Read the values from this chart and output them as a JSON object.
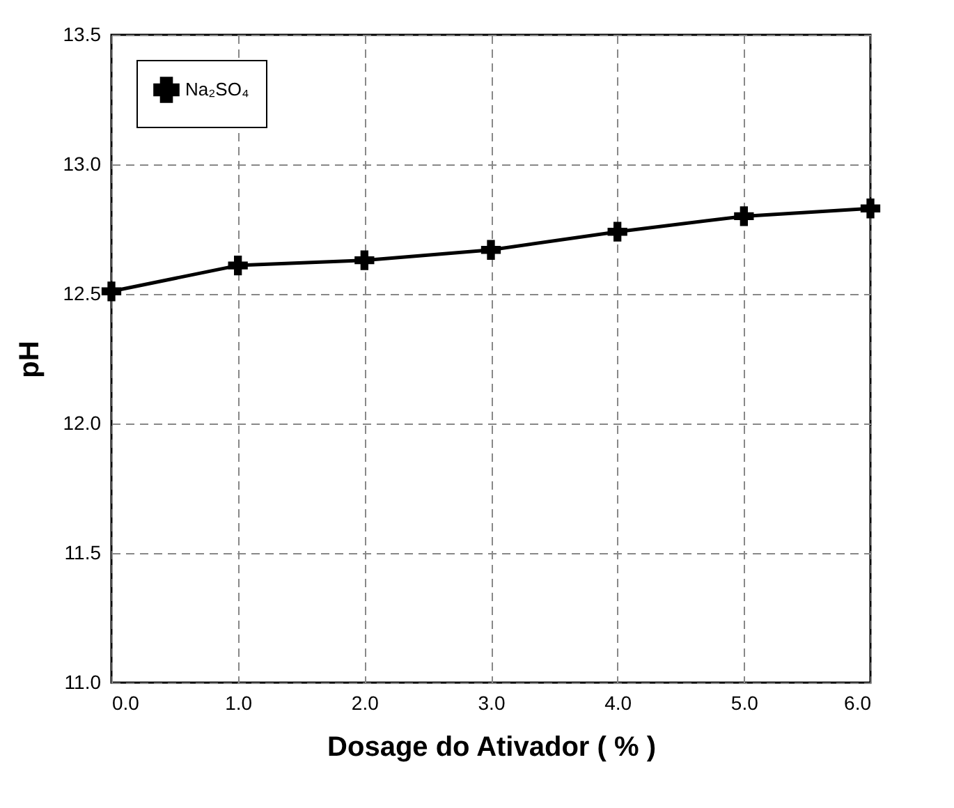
{
  "chart_data": {
    "type": "line",
    "xlabel": "Dosage do Ativador ( % )",
    "ylabel": "pH",
    "x": [
      0,
      1,
      2,
      3,
      4,
      5,
      6
    ],
    "series": [
      {
        "name": "Na₂SO₄",
        "color": "#000000",
        "values": [
          12.51,
          12.61,
          12.63,
          12.67,
          12.74,
          12.8,
          12.83
        ]
      }
    ],
    "xlim": [
      0,
      6
    ],
    "ylim": [
      11,
      13.5
    ],
    "xticks": [
      {
        "value": 0,
        "label": "0.0"
      },
      {
        "value": 1,
        "label": "1.0"
      },
      {
        "value": 2,
        "label": "2.0"
      },
      {
        "value": 3,
        "label": "3.0"
      },
      {
        "value": 4,
        "label": "4.0"
      },
      {
        "value": 5,
        "label": "5.0"
      },
      {
        "value": 6,
        "label": "6.0"
      }
    ],
    "yticks": [
      {
        "value": 11,
        "label": "11.0"
      },
      {
        "value": 11.5,
        "label": "11.5"
      },
      {
        "value": 12,
        "label": "12.0"
      },
      {
        "value": 12.5,
        "label": "12.5"
      },
      {
        "value": 13,
        "label": "13.0"
      },
      {
        "value": 13.5,
        "label": "13.5"
      }
    ],
    "grid": true,
    "legend": "top left",
    "marker": "cross",
    "line_style": "solid"
  }
}
